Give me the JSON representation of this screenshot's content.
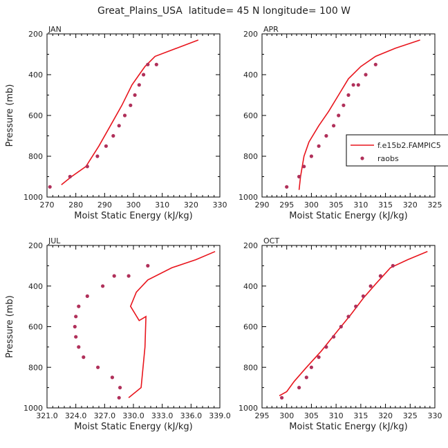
{
  "title": "Great_Plains_USA  latitude= 45 N longitude= 100 W",
  "colors": {
    "model": "#e8141c",
    "obs": "#b0305a"
  },
  "legend": {
    "model_label": "f.e15b2.FAMPIC5",
    "obs_label": "raobs"
  },
  "chart_data": [
    {
      "type": "line",
      "title": "JAN",
      "xlabel": "Moist Static Energy (kJ/kg)",
      "ylabel": "Pressure (mb)",
      "xlim": [
        270,
        330
      ],
      "xticks": [
        270,
        280,
        290,
        300,
        310,
        320,
        330
      ],
      "xtick_labels": [
        "270",
        "280",
        "290",
        "300",
        "310",
        "320",
        "330"
      ],
      "ylim": [
        1000,
        200
      ],
      "yticks": [
        200,
        400,
        600,
        800,
        1000
      ],
      "ytick_labels": [
        "200",
        "400",
        "600",
        "800",
        "1000"
      ],
      "series": [
        {
          "name": "f.e15b2.FAMPIC5",
          "kind": "line",
          "x": [
            275.0,
            278.5,
            283.5,
            288.0,
            292.0,
            296.0,
            299.5,
            302.0,
            304.0,
            307.5,
            315.0,
            322.5
          ],
          "y": [
            940,
            900,
            850,
            750,
            650,
            550,
            450,
            400,
            360,
            310,
            270,
            230
          ]
        },
        {
          "name": "raobs",
          "kind": "scatter",
          "x": [
            271.0,
            278.0,
            284.0,
            287.5,
            290.5,
            293.0,
            295.0,
            297.0,
            299.0,
            300.5,
            302.0,
            303.5,
            305.0,
            308.0
          ],
          "y": [
            950,
            900,
            850,
            800,
            750,
            700,
            650,
            600,
            550,
            500,
            450,
            400,
            350,
            350
          ]
        }
      ]
    },
    {
      "type": "line",
      "title": "APR",
      "xlabel": "Moist Static Energy (kJ/kg)",
      "ylabel": "",
      "xlim": [
        290,
        325
      ],
      "xticks": [
        290,
        295,
        300,
        305,
        310,
        315,
        320,
        325
      ],
      "xtick_labels": [
        "290",
        "295",
        "300",
        "305",
        "310",
        "315",
        "320",
        "325"
      ],
      "ylim": [
        1000,
        200
      ],
      "yticks": [
        200,
        400,
        600,
        800,
        1000
      ],
      "ytick_labels": [
        "200",
        "400",
        "600",
        "800",
        "1000"
      ],
      "series": [
        {
          "name": "f.e15b2.FAMPIC5",
          "kind": "line",
          "x": [
            297.5,
            297.8,
            298.5,
            299.5,
            301.5,
            303.5,
            305.5,
            307.5,
            310.0,
            313.0,
            317.0,
            322.0
          ],
          "y": [
            965,
            900,
            800,
            730,
            650,
            580,
            500,
            420,
            360,
            310,
            270,
            230
          ]
        },
        {
          "name": "raobs",
          "kind": "scatter",
          "x": [
            295.0,
            297.5,
            298.5,
            300.0,
            301.5,
            303.0,
            304.5,
            305.5,
            306.5,
            307.5,
            308.5,
            309.5,
            311.0,
            313.0
          ],
          "y": [
            950,
            900,
            850,
            800,
            750,
            700,
            650,
            600,
            550,
            500,
            450,
            450,
            400,
            350
          ]
        }
      ]
    },
    {
      "type": "line",
      "title": "JUL",
      "xlabel": "Moist Static Energy (kJ/kg)",
      "ylabel": "Pressure (mb)",
      "xlim": [
        321,
        339
      ],
      "xticks": [
        321,
        324,
        327,
        330,
        333,
        336,
        339
      ],
      "xtick_labels": [
        "321.0",
        "324.0",
        "327.0",
        "330.0",
        "333.0",
        "336.0",
        "339.0"
      ],
      "ylim": [
        1000,
        200
      ],
      "yticks": [
        200,
        400,
        600,
        800,
        1000
      ],
      "ytick_labels": [
        "200",
        "400",
        "600",
        "800",
        "1000"
      ],
      "series": [
        {
          "name": "f.e15b2.FAMPIC5",
          "kind": "line",
          "x": [
            329.5,
            330.8,
            331.0,
            331.2,
            331.3,
            330.6,
            329.7,
            330.3,
            331.5,
            334.0,
            336.5,
            338.5
          ],
          "y": [
            950,
            900,
            800,
            700,
            550,
            570,
            500,
            430,
            370,
            310,
            270,
            230
          ]
        },
        {
          "name": "raobs",
          "kind": "scatter",
          "x": [
            328.5,
            328.6,
            327.8,
            326.3,
            324.8,
            324.3,
            324.0,
            323.9,
            324.0,
            324.3,
            325.2,
            326.8,
            328.0,
            329.5,
            331.5
          ],
          "y": [
            950,
            900,
            850,
            800,
            750,
            700,
            650,
            600,
            550,
            500,
            450,
            400,
            350,
            350,
            300
          ]
        }
      ]
    },
    {
      "type": "line",
      "title": "OCT",
      "xlabel": "Moist Static Energy (kJ/kg)",
      "ylabel": "",
      "xlim": [
        295,
        330
      ],
      "xticks": [
        295,
        300,
        305,
        310,
        315,
        320,
        325,
        330
      ],
      "xtick_labels": [
        "295",
        "300",
        "305",
        "310",
        "315",
        "320",
        "325",
        "330"
      ],
      "ylim": [
        1000,
        200
      ],
      "yticks": [
        200,
        400,
        600,
        800,
        1000
      ],
      "ytick_labels": [
        "200",
        "400",
        "600",
        "800",
        "1000"
      ],
      "series": [
        {
          "name": "f.e15b2.FAMPIC5",
          "kind": "line",
          "x": [
            298.5,
            300.0,
            301.5,
            304.0,
            307.0,
            310.0,
            313.0,
            315.5,
            318.0,
            321.0,
            324.5,
            328.5
          ],
          "y": [
            940,
            920,
            870,
            800,
            720,
            630,
            540,
            460,
            390,
            310,
            270,
            230
          ]
        },
        {
          "name": "raobs",
          "kind": "scatter",
          "x": [
            299.0,
            302.5,
            304.0,
            305.0,
            306.5,
            308.0,
            309.5,
            311.0,
            312.5,
            314.0,
            315.5,
            317.0,
            319.0,
            321.5
          ],
          "y": [
            950,
            900,
            850,
            800,
            750,
            700,
            650,
            600,
            550,
            500,
            450,
            400,
            350,
            300
          ]
        }
      ]
    }
  ]
}
